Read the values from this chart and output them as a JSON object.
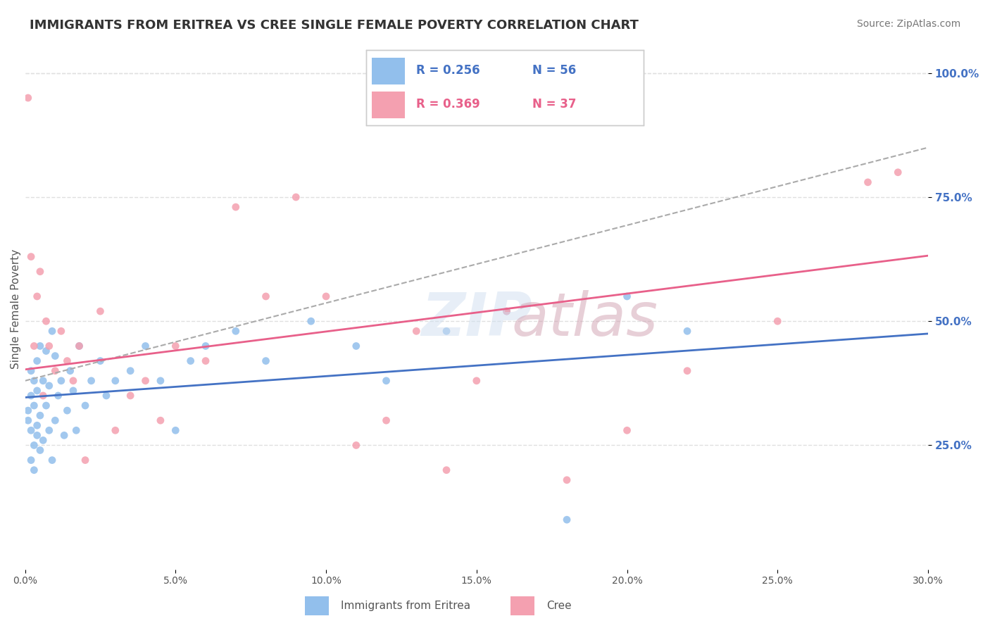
{
  "title": "IMMIGRANTS FROM ERITREA VS CREE SINGLE FEMALE POVERTY CORRELATION CHART",
  "source_text": "Source: ZipAtlas.com",
  "xlabel": "",
  "ylabel": "Single Female Poverty",
  "xlim": [
    0.0,
    0.3
  ],
  "ylim": [
    0.0,
    1.05
  ],
  "xtick_labels": [
    "0.0%",
    "5.0%",
    "10.0%",
    "15.0%",
    "20.0%",
    "25.0%",
    "30.0%"
  ],
  "xtick_values": [
    0.0,
    0.05,
    0.1,
    0.15,
    0.2,
    0.25,
    0.3
  ],
  "ytick_labels": [
    "25.0%",
    "50.0%",
    "75.0%",
    "100.0%"
  ],
  "ytick_values": [
    0.25,
    0.5,
    0.75,
    1.0
  ],
  "blue_color": "#92BFEC",
  "pink_color": "#F4A0B0",
  "blue_R": 0.256,
  "blue_N": 56,
  "pink_R": 0.369,
  "pink_N": 37,
  "blue_label": "Immigrants from Eritrea",
  "pink_label": "Cree",
  "legend_R_label_blue": "R = 0.256",
  "legend_N_label_blue": "N = 56",
  "legend_R_label_pink": "R = 0.369",
  "legend_N_label_pink": "N = 37",
  "watermark": "ZIPatlas",
  "background_color": "#ffffff",
  "grid_color": "#e0e0e0",
  "blue_scatter": {
    "x": [
      0.001,
      0.001,
      0.002,
      0.002,
      0.002,
      0.002,
      0.003,
      0.003,
      0.003,
      0.003,
      0.004,
      0.004,
      0.004,
      0.004,
      0.005,
      0.005,
      0.005,
      0.006,
      0.006,
      0.007,
      0.007,
      0.008,
      0.008,
      0.009,
      0.009,
      0.01,
      0.01,
      0.011,
      0.012,
      0.013,
      0.014,
      0.015,
      0.016,
      0.017,
      0.018,
      0.02,
      0.022,
      0.025,
      0.027,
      0.03,
      0.035,
      0.04,
      0.045,
      0.05,
      0.055,
      0.06,
      0.07,
      0.08,
      0.095,
      0.11,
      0.12,
      0.14,
      0.16,
      0.18,
      0.2,
      0.22
    ],
    "y": [
      0.3,
      0.32,
      0.28,
      0.35,
      0.22,
      0.4,
      0.25,
      0.38,
      0.2,
      0.33,
      0.27,
      0.36,
      0.42,
      0.29,
      0.31,
      0.45,
      0.24,
      0.38,
      0.26,
      0.33,
      0.44,
      0.28,
      0.37,
      0.22,
      0.48,
      0.3,
      0.43,
      0.35,
      0.38,
      0.27,
      0.32,
      0.4,
      0.36,
      0.28,
      0.45,
      0.33,
      0.38,
      0.42,
      0.35,
      0.38,
      0.4,
      0.45,
      0.38,
      0.28,
      0.42,
      0.45,
      0.48,
      0.42,
      0.5,
      0.45,
      0.38,
      0.48,
      0.52,
      0.1,
      0.55,
      0.48
    ]
  },
  "pink_scatter": {
    "x": [
      0.001,
      0.002,
      0.003,
      0.004,
      0.005,
      0.006,
      0.007,
      0.008,
      0.01,
      0.012,
      0.014,
      0.016,
      0.018,
      0.02,
      0.025,
      0.03,
      0.035,
      0.04,
      0.045,
      0.05,
      0.06,
      0.07,
      0.08,
      0.09,
      0.1,
      0.11,
      0.12,
      0.13,
      0.14,
      0.15,
      0.16,
      0.18,
      0.2,
      0.22,
      0.25,
      0.28,
      0.29
    ],
    "y": [
      0.95,
      0.63,
      0.45,
      0.55,
      0.6,
      0.35,
      0.5,
      0.45,
      0.4,
      0.48,
      0.42,
      0.38,
      0.45,
      0.22,
      0.52,
      0.28,
      0.35,
      0.38,
      0.3,
      0.45,
      0.42,
      0.73,
      0.55,
      0.75,
      0.55,
      0.25,
      0.3,
      0.48,
      0.2,
      0.38,
      0.52,
      0.18,
      0.28,
      0.4,
      0.5,
      0.78,
      0.8
    ]
  }
}
